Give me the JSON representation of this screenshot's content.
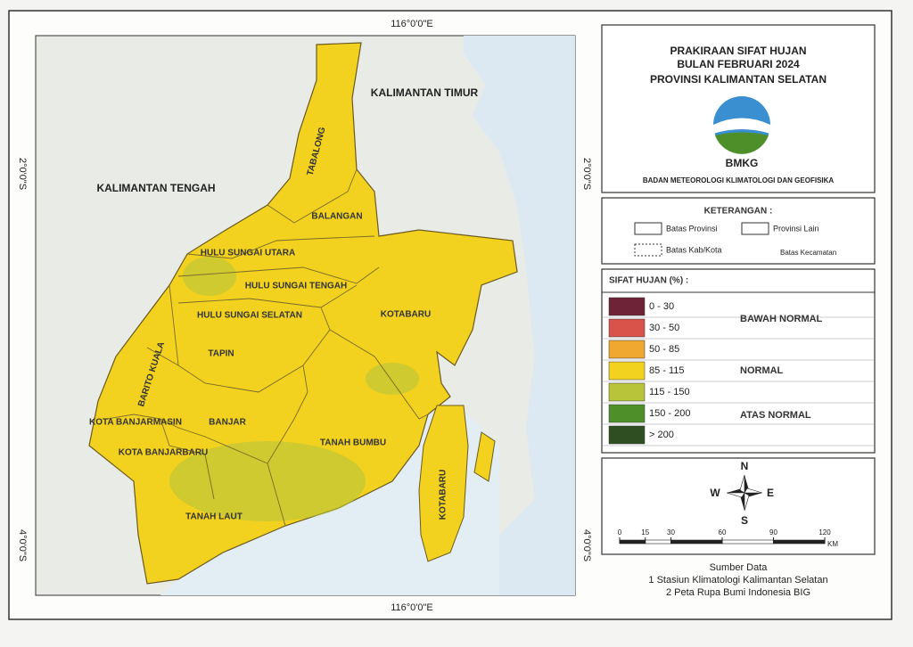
{
  "map": {
    "graticule": {
      "top": "116°0'0\"E",
      "bottom": "116°0'0\"E",
      "left_upper": "2°0'0\"S",
      "left_lower": "4°0'0\"S",
      "right_upper": "2°0'0\"S",
      "right_lower": "4°0'0\"S"
    },
    "neighbors": [
      "KALIMANTAN TIMUR",
      "KALIMANTAN TENGAH"
    ],
    "districts": [
      "TABALONG",
      "BALANGAN",
      "HULU SUNGAI UTARA",
      "HULU SUNGAI TENGAH",
      "HULU SUNGAI SELATAN",
      "TAPIN",
      "BARITO KUALA",
      "KOTA BANJARMASIN",
      "BANJAR",
      "KOTA BANJARBARU",
      "TANAH LAUT",
      "TANAH BUMBU",
      "KOTABARU",
      "KOTABARU"
    ]
  },
  "title": {
    "lines": [
      "PRAKIRAAN SIFAT HUJAN",
      "BULAN FEBRUARI 2024",
      "PROVINSI KALIMANTAN SELATAN"
    ],
    "logo_text": "BMKG",
    "agency": "BADAN METEOROLOGI KLIMATOLOGI DAN GEOFISIKA"
  },
  "keterangan": {
    "title": "KETERANGAN :",
    "items": [
      "Batas Provinsi",
      "Provinsi Lain",
      "Batas Kab/Kota",
      "Batas Kecamatan"
    ]
  },
  "legend": {
    "title": "SIFAT HUJAN (%) :",
    "classes": [
      {
        "label": "0 - 30",
        "color": "#6e2336"
      },
      {
        "label": "30 - 50",
        "color": "#d9534a"
      },
      {
        "label": "50 - 85",
        "color": "#f0a830"
      },
      {
        "label": "85 - 115",
        "color": "#f2d21e"
      },
      {
        "label": "115 - 150",
        "color": "#b8c43a"
      },
      {
        "label": "150 - 200",
        "color": "#4f8f2a"
      },
      {
        "label": "> 200",
        "color": "#2f4f22"
      }
    ],
    "groups": [
      "BAWAH NORMAL",
      "NORMAL",
      "ATAS NORMAL"
    ]
  },
  "compass": {
    "n": "N",
    "e": "E",
    "s": "S",
    "w": "W"
  },
  "scale": {
    "ticks": [
      0,
      15,
      30,
      60,
      90,
      120
    ],
    "unit": "KM"
  },
  "source": {
    "title": "Sumber Data",
    "items": [
      "1  Stasiun Klimatologi Kalimantan Selatan",
      "2  Peta Rupa Bumi Indonesia  BIG"
    ]
  }
}
